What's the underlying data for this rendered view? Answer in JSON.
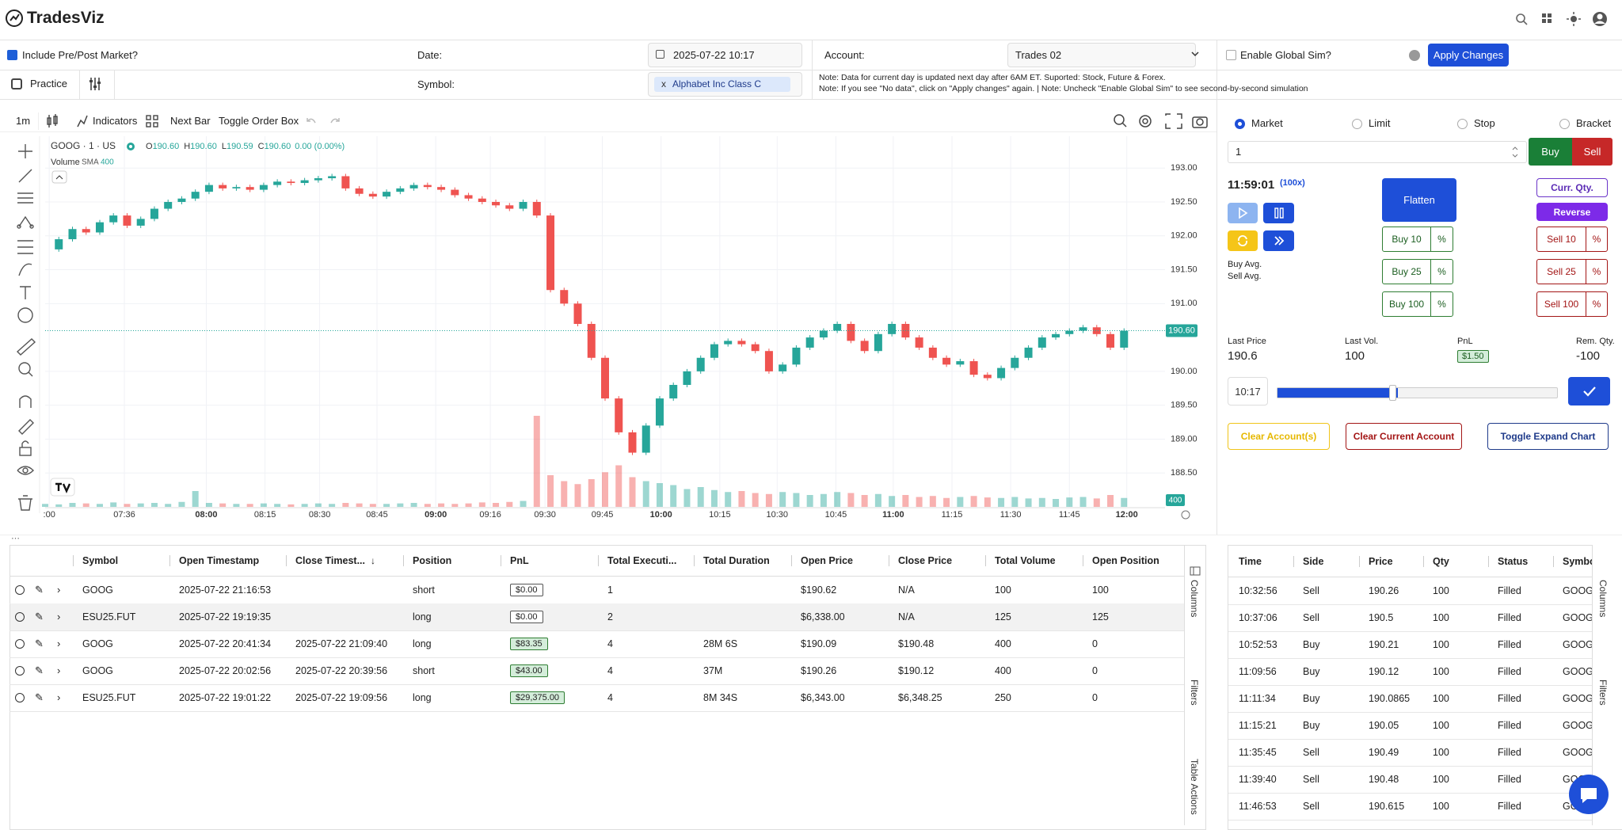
{
  "header": {
    "logo": "TradesViz"
  },
  "settings": {
    "pre_post_label": "Include Pre/Post Market?",
    "date_label": "Date:",
    "date_value": "2025-07-22 10:17",
    "account_label": "Account:",
    "account_value": "Trades 02",
    "global_sim_label": "Enable Global Sim?",
    "apply_button": "Apply Changes",
    "practice_label": "Practice",
    "symbol_label": "Symbol:",
    "symbol_remove": "x",
    "symbol_value": "Alphabet Inc Class C",
    "notes": [
      "Note: Data for current day is updated next day after 6AM ET. Suported: Stock, Future & Forex.",
      "Note: If you see \"No data\", click on \"Apply changes\" again. | Note: Uncheck \"Enable Global Sim\" to see second-by-second simulation"
    ]
  },
  "toolbar": {
    "interval": "1m",
    "indicators": "Indicators",
    "next_bar": "Next Bar",
    "toggle_order_box": "Toggle Order Box"
  },
  "chart_data": {
    "type": "candlestick",
    "title": "GOOG · 1 · US",
    "ohlc": [
      {
        "label": "O",
        "value": "190.60"
      },
      {
        "label": "H",
        "value": "190.60"
      },
      {
        "label": "L",
        "value": "190.59"
      },
      {
        "label": "C",
        "value": "190.60"
      }
    ],
    "change": "0.00 (0.00%)",
    "volume_title": "Volume",
    "volume_sma_label": "SMA",
    "volume_sma_value": "400",
    "closes": [
      191.8,
      191.95,
      192.1,
      192.05,
      192.2,
      192.3,
      192.15,
      192.25,
      192.4,
      192.5,
      192.55,
      192.65,
      192.75,
      192.7,
      192.72,
      192.68,
      192.75,
      192.8,
      192.78,
      192.82,
      192.85,
      192.88,
      192.7,
      192.62,
      192.58,
      192.65,
      192.7,
      192.75,
      192.72,
      192.68,
      192.6,
      192.55,
      192.5,
      192.45,
      192.4,
      192.5,
      192.3,
      191.2,
      191.0,
      190.7,
      190.2,
      189.6,
      189.1,
      188.8,
      189.2,
      189.6,
      189.8,
      190.0,
      190.2,
      190.4,
      190.45,
      190.4,
      190.3,
      190.0,
      190.1,
      190.35,
      190.5,
      190.6,
      190.7,
      190.45,
      190.3,
      190.55,
      190.7,
      190.5,
      190.35,
      190.2,
      190.1,
      190.15,
      189.95,
      189.9,
      190.05,
      190.2,
      190.35,
      190.5,
      190.55,
      190.6,
      190.65,
      190.55,
      190.35,
      190.6
    ],
    "volumes": [
      30,
      25,
      40,
      35,
      30,
      45,
      30,
      35,
      40,
      30,
      50,
      160,
      40,
      35,
      30,
      30,
      35,
      30,
      25,
      30,
      35,
      30,
      40,
      35,
      30,
      30,
      35,
      40,
      30,
      35,
      30,
      35,
      45,
      40,
      50,
      60,
      920,
      320,
      260,
      230,
      280,
      350,
      420,
      300,
      260,
      240,
      220,
      180,
      200,
      170,
      150,
      160,
      140,
      130,
      150,
      140,
      120,
      130,
      150,
      140,
      120,
      130,
      110,
      120,
      100,
      110,
      90,
      100,
      110,
      95,
      90,
      100,
      85,
      90,
      80,
      95,
      100,
      85,
      120,
      90
    ],
    "up_color": "#26a69a",
    "down_color": "#ef5350",
    "ylim": [
      188.0,
      193.47
    ],
    "yticks": [
      {
        "value": 193,
        "label": "193.00"
      },
      {
        "value": 192.5,
        "label": "192.50"
      },
      {
        "value": 192,
        "label": "192.00"
      },
      {
        "value": 191.5,
        "label": "191.50"
      },
      {
        "value": 191,
        "label": "191.00"
      },
      {
        "value": 190,
        "label": "190.00"
      },
      {
        "value": 189.5,
        "label": "189.50"
      },
      {
        "value": 189,
        "label": "189.00"
      },
      {
        "value": 188.5,
        "label": "188.50"
      }
    ],
    "xlim": [
      0,
      82
    ],
    "xticks": [
      {
        "value": 0.3,
        "label": ":00"
      },
      {
        "value": 5.8,
        "label": "07:36"
      },
      {
        "value": 11.8,
        "label": "08:00"
      },
      {
        "value": 16.1,
        "label": "08:15"
      },
      {
        "value": 20.1,
        "label": "08:30"
      },
      {
        "value": 24.3,
        "label": "08:45"
      },
      {
        "value": 28.6,
        "label": "09:00"
      },
      {
        "value": 32.6,
        "label": "09:16"
      },
      {
        "value": 36.6,
        "label": "09:30"
      },
      {
        "value": 40.8,
        "label": "09:45"
      },
      {
        "value": 45.1,
        "label": "10:00"
      },
      {
        "value": 49.4,
        "label": "10:15"
      },
      {
        "value": 53.6,
        "label": "10:30"
      },
      {
        "value": 57.9,
        "label": "10:45"
      },
      {
        "value": 62.1,
        "label": "11:00"
      },
      {
        "value": 66.4,
        "label": "11:15"
      },
      {
        "value": 70.7,
        "label": "11:30"
      },
      {
        "value": 75.0,
        "label": "11:45"
      },
      {
        "value": 79.2,
        "label": "12:00"
      }
    ],
    "vlim": [
      0,
      1000
    ],
    "last_price": {
      "value": 190.6,
      "label": "190.60"
    },
    "volume_tag": 400
  },
  "order_panel": {
    "order_types": [
      "Market",
      "Limit",
      "Stop",
      "Bracket"
    ],
    "quantity": "1",
    "buy": "Buy",
    "sell": "Sell",
    "clock": "11:59:01",
    "speed": "(100x)",
    "flatten": "Flatten",
    "curr_qty": "Curr. Qty.",
    "reverse": "Reverse",
    "buy_buttons": [
      "Buy 10",
      "Buy 25",
      "Buy 100"
    ],
    "sell_buttons": [
      "Sell 10",
      "Sell 25",
      "Sell 100"
    ],
    "percent": "%",
    "buy_avg": "Buy Avg.",
    "sell_avg": "Sell Avg.",
    "stats": [
      {
        "label": "Last Price",
        "value": "190.6"
      },
      {
        "label": "Last Vol.",
        "value": "100"
      },
      {
        "label": "PnL",
        "value": "$1.50"
      },
      {
        "label": "Rem. Qty.",
        "value": "-100"
      }
    ],
    "time": "10:17",
    "clear_accounts": "Clear Account(s)",
    "clear_current": "Clear Current Account",
    "toggle_expand": "Toggle Expand Chart"
  },
  "trades_table": {
    "headers": [
      "Symbol",
      "Open Timestamp",
      "Close Timest...",
      "Position",
      "PnL",
      "Total Executi...",
      "Total Duration",
      "Open Price",
      "Close Price",
      "Total Volume",
      "Open Position"
    ],
    "rows": [
      [
        "GOOG",
        "2025-07-22 21:16:53",
        null,
        "short",
        "$0.00",
        "1",
        null,
        "$190.62",
        "N/A",
        "100",
        "100"
      ],
      [
        "ESU25.FUT",
        "2025-07-22 19:19:35",
        null,
        "long",
        "$0.00",
        "2",
        null,
        "$6,338.00",
        "N/A",
        "125",
        "125"
      ],
      [
        "GOOG",
        "2025-07-22 20:41:34",
        "2025-07-22 21:09:40",
        "long",
        "$83.35",
        "4",
        "28M 6S",
        "$190.09",
        "$190.48",
        "400",
        "0"
      ],
      [
        "GOOG",
        "2025-07-22 20:02:56",
        "2025-07-22 20:39:56",
        "short",
        "$43.00",
        "4",
        "37M",
        "$190.26",
        "$190.12",
        "400",
        "0"
      ],
      [
        "ESU25.FUT",
        "2025-07-22 19:01:22",
        "2025-07-22 19:09:56",
        "long",
        "$29,375.00",
        "4",
        "8M 34S",
        "$6,343.00",
        "$6,348.25",
        "250",
        "0"
      ]
    ]
  },
  "side_actions": {
    "columns": "Columns",
    "filters": "Filters",
    "table_actions": "Table Actions"
  },
  "executions_table": {
    "headers": [
      "Time",
      "Side",
      "Price",
      "Qty",
      "Status",
      "Symbol"
    ],
    "rows": [
      [
        "10:32:56",
        "Sell",
        "190.26",
        "100",
        "Filled",
        "GOOG"
      ],
      [
        "10:37:06",
        "Sell",
        "190.5",
        "100",
        "Filled",
        "GOOG"
      ],
      [
        "10:52:53",
        "Buy",
        "190.21",
        "100",
        "Filled",
        "GOOG"
      ],
      [
        "11:09:56",
        "Buy",
        "190.12",
        "100",
        "Filled",
        "GOOG"
      ],
      [
        "11:11:34",
        "Buy",
        "190.0865",
        "100",
        "Filled",
        "GOOG"
      ],
      [
        "11:15:21",
        "Buy",
        "190.05",
        "100",
        "Filled",
        "GOOG"
      ],
      [
        "11:35:45",
        "Sell",
        "190.49",
        "100",
        "Filled",
        "GOOG"
      ],
      [
        "11:39:40",
        "Sell",
        "190.48",
        "100",
        "Filled",
        "GOOG"
      ],
      [
        "11:46:53",
        "Sell",
        "190.615",
        "100",
        "Filled",
        "GOOG"
      ]
    ]
  }
}
